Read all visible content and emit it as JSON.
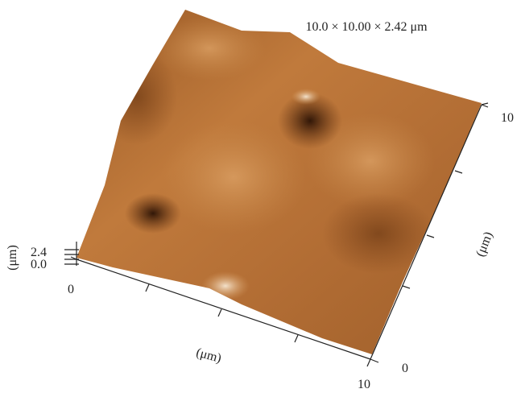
{
  "title": "10.0 × 10.00 × 2.42 μm",
  "z_axis": {
    "label": "(μm)",
    "ticks": [
      "2.4",
      "0.0"
    ]
  },
  "x_axis": {
    "label": "(μm)",
    "ticks": [
      "0",
      "10"
    ]
  },
  "y_axis": {
    "label": "(μm)",
    "ticks": [
      "0",
      "10"
    ]
  }
}
